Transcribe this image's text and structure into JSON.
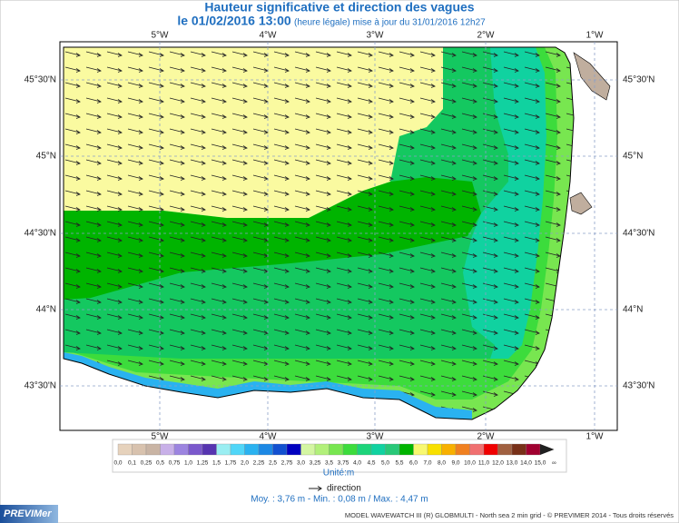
{
  "header": {
    "title": "Hauteur significative et direction des vagues",
    "date": "le 01/02/2016 13:00",
    "update": "(heure légale) mise à jour du 31/01/2016 12h27"
  },
  "map": {
    "lon_labels": [
      "5°W",
      "4°W",
      "3°W",
      "2°W",
      "1°W"
    ],
    "lat_labels": [
      "45°30'N",
      "45°N",
      "44°30'N",
      "44°N",
      "43°30'N"
    ]
  },
  "colorbar": {
    "labels": [
      "0,0",
      "0,1",
      "0,25",
      "0,5",
      "0,75",
      "1,0",
      "1,25",
      "1,5",
      "1,75",
      "2,0",
      "2,25",
      "2,5",
      "2,75",
      "3,0",
      "3,25",
      "3,5",
      "3,75",
      "4,0",
      "4,5",
      "5,0",
      "5,5",
      "6,0",
      "7,0",
      "8,0",
      "9,0",
      "10,0",
      "11,0",
      "12,0",
      "13,0",
      "14,0",
      "15,0",
      "∞"
    ],
    "colors": [
      "#e6d2bc",
      "#d8c2ae",
      "#c9b4a4",
      "#c8b0e8",
      "#9c84e0",
      "#7a58cc",
      "#5634b0",
      "#9aeef2",
      "#50d6f8",
      "#2ab2f0",
      "#1c88e4",
      "#1250d0",
      "#0000c0",
      "#d4f6a2",
      "#b2f07a",
      "#78e650",
      "#3cdc3c",
      "#1cd47a",
      "#10d2a0",
      "#28c878",
      "#00b400",
      "#f8f870",
      "#f8e000",
      "#f8b000",
      "#f08020",
      "#f07070",
      "#f00000",
      "#a06040",
      "#783018",
      "#a00030",
      "#202020"
    ],
    "unit": "Unité:m",
    "direction": "direction"
  },
  "stats": "Moy. : 3,76 m   -   Min. : 0,08 m / Max. : 4,47 m",
  "footer": {
    "logo": "PREVIMer",
    "credits": "MODEL WAVEWATCH III (R) GLOBMULTI - North sea 2 min grid - © PREVIMER 2014 - Tous droits réservés"
  }
}
